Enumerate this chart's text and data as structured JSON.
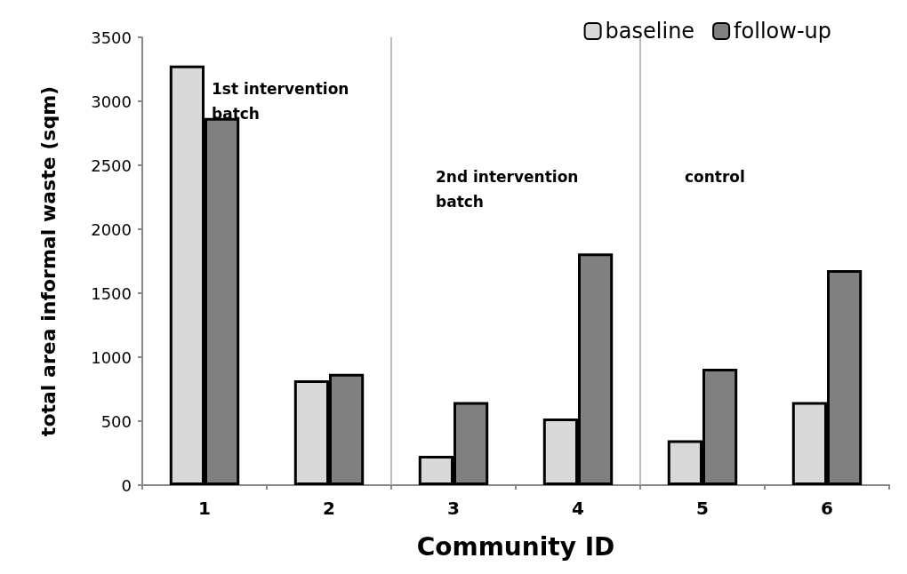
{
  "chart_data": {
    "type": "bar",
    "xlabel": "Community ID",
    "ylabel": "total area informal waste (sqm)",
    "categories": [
      "1",
      "2",
      "3",
      "4",
      "5",
      "6"
    ],
    "series": [
      {
        "name": "baseline",
        "color": "#d9d9d9",
        "values": [
          3280,
          820,
          230,
          520,
          350,
          650
        ]
      },
      {
        "name": "follow-up",
        "color": "#808080",
        "values": [
          2870,
          870,
          650,
          1810,
          910,
          1680
        ]
      }
    ],
    "ylim": [
      0,
      3500
    ],
    "yticks": [
      0,
      500,
      1000,
      1500,
      2000,
      2500,
      3000,
      3500
    ],
    "annotations": [
      "1st intervention\nbatch",
      "2nd intervention\nbatch",
      "control"
    ],
    "grid": false,
    "legend": "top right"
  }
}
